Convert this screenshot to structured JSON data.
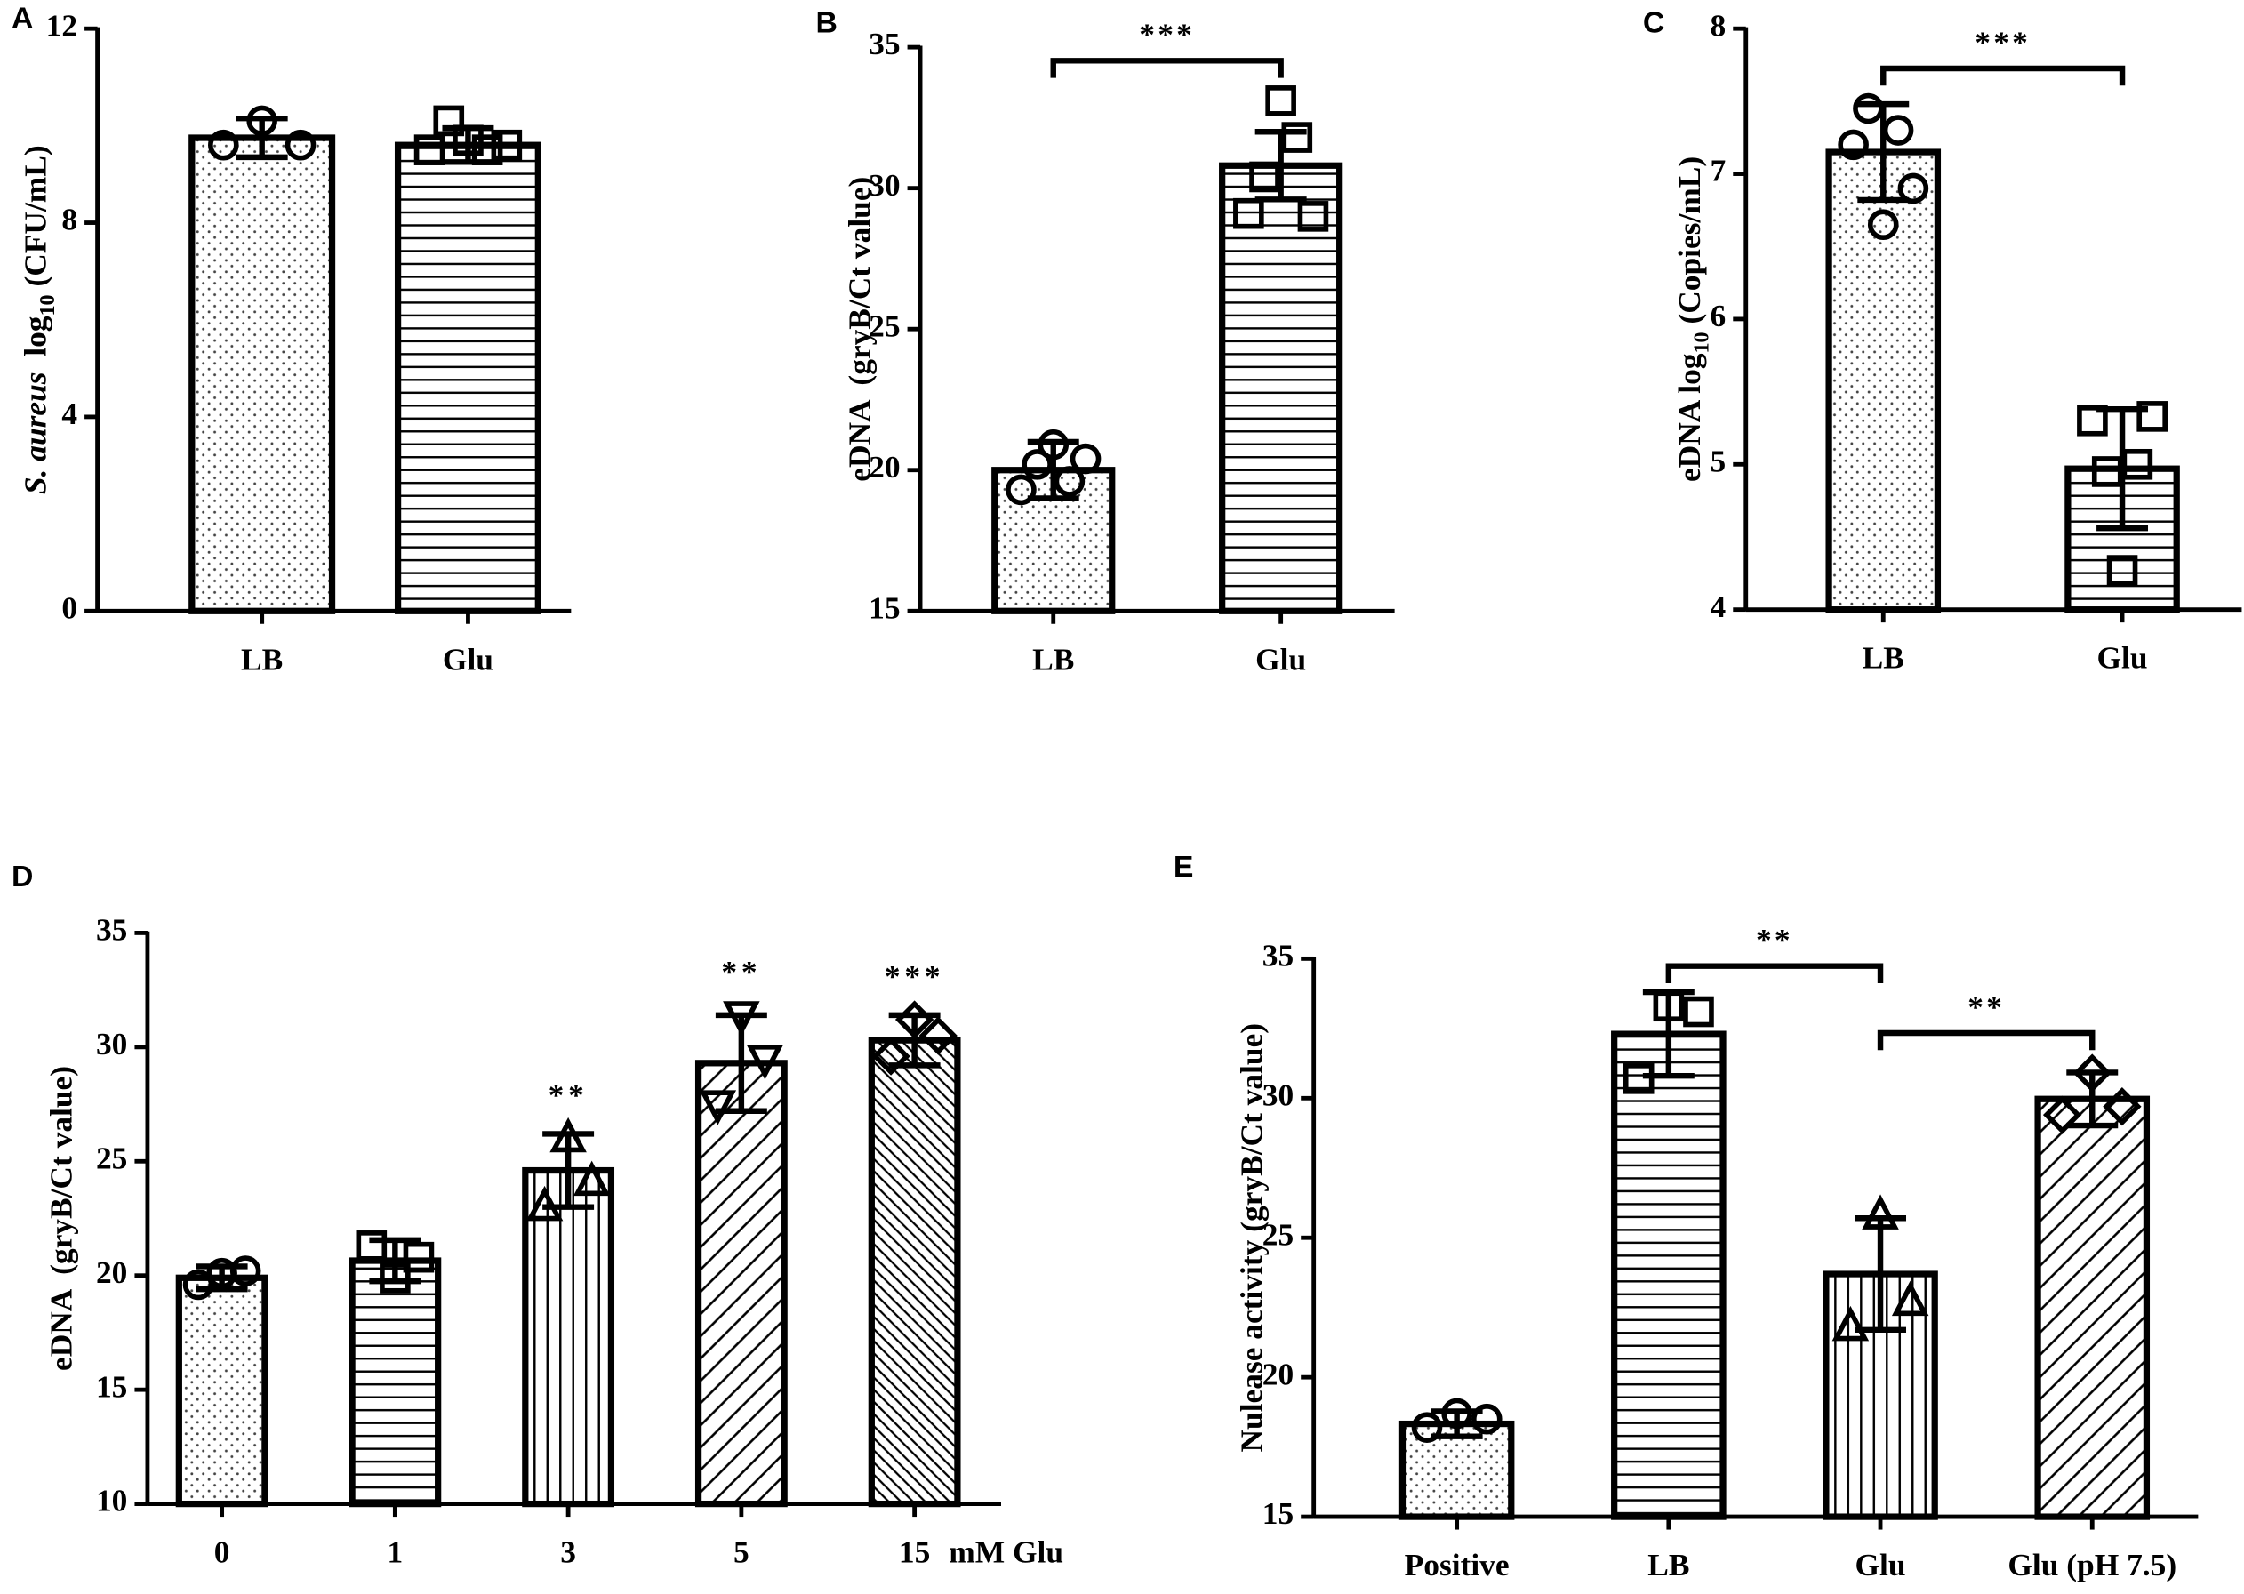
{
  "chart_data": [
    {
      "type": "bar",
      "panel": "A",
      "categories": [
        "LB",
        "Glu"
      ],
      "values": [
        9.75,
        9.6
      ],
      "errors": [
        0.4,
        0.35
      ],
      "points": [
        [
          9.6,
          10.1,
          9.6
        ],
        [
          9.5,
          10.1,
          9.7,
          9.5,
          9.6
        ]
      ],
      "patterns": [
        "dots",
        "hlines"
      ],
      "markers": [
        "circle",
        "square"
      ],
      "ylim": [
        0,
        12
      ],
      "yticks": [
        0,
        4,
        8,
        12
      ],
      "y_label": [
        {
          "text": "S. aureus",
          "italic": true
        },
        {
          "text": "  log"
        },
        {
          "text": "10",
          "sub": true
        },
        {
          "text": " (CFU/mL)"
        }
      ],
      "annotations": []
    },
    {
      "type": "bar",
      "panel": "B",
      "categories": [
        "LB",
        "Glu"
      ],
      "values": [
        20.0,
        30.8
      ],
      "errors": [
        1.0,
        1.2
      ],
      "points": [
        [
          19.3,
          20.2,
          20.9,
          19.6,
          20.4
        ],
        [
          29.1,
          30.4,
          33.1,
          31.8,
          29.0
        ]
      ],
      "patterns": [
        "dots",
        "hlines"
      ],
      "markers": [
        "circle",
        "square"
      ],
      "ylim": [
        15,
        35
      ],
      "yticks": [
        15,
        20,
        25,
        30,
        35
      ],
      "y_label": [
        {
          "text": "eDNA  (gryB/Ct value)"
        }
      ],
      "annotations": [
        {
          "text": "***",
          "from": 0,
          "to": 1
        }
      ]
    },
    {
      "type": "bar",
      "panel": "C",
      "categories": [
        "LB",
        "Glu"
      ],
      "values": [
        7.15,
        4.97
      ],
      "errors": [
        0.33,
        0.41
      ],
      "points": [
        [
          7.2,
          7.45,
          6.65,
          7.3,
          6.9
        ],
        [
          5.3,
          4.95,
          4.27,
          5.0,
          5.33
        ]
      ],
      "patterns": [
        "dots",
        "hlines"
      ],
      "markers": [
        "circle",
        "square"
      ],
      "ylim": [
        4,
        8
      ],
      "yticks": [
        4,
        5,
        6,
        7,
        8
      ],
      "y_label": [
        {
          "text": "eDNA log"
        },
        {
          "text": "10",
          "sub": true
        },
        {
          "text": " (Copies/mL)"
        }
      ],
      "annotations": [
        {
          "text": "***",
          "from": 0,
          "to": 1
        }
      ]
    },
    {
      "type": "bar",
      "panel": "D",
      "categories": [
        "0",
        "1",
        "3",
        "5",
        "15"
      ],
      "x_label": "mM Glu",
      "values": [
        19.9,
        20.65,
        24.6,
        29.3,
        30.3
      ],
      "errors": [
        0.5,
        0.9,
        1.6,
        2.1,
        1.1
      ],
      "points": [
        [
          19.6,
          20.1,
          20.2
        ],
        [
          21.3,
          19.9,
          20.8
        ],
        [
          23.0,
          26.0,
          24.1
        ],
        [
          27.5,
          31.4,
          29.5
        ],
        [
          29.6,
          31.2,
          30.5
        ]
      ],
      "patterns": [
        "dots",
        "hlines",
        "vlines",
        "diag",
        "backdiag"
      ],
      "markers": [
        "circle",
        "square",
        "triangle-up",
        "triangle-down",
        "diamond"
      ],
      "ylim": [
        10,
        35
      ],
      "yticks": [
        10,
        15,
        20,
        25,
        30,
        35
      ],
      "y_label": [
        {
          "text": "eDNA  (gryB/Ct value)"
        }
      ],
      "annotations": [
        {
          "text": "**",
          "at": 2
        },
        {
          "text": "**",
          "at": 3
        },
        {
          "text": "***",
          "at": 4
        }
      ]
    },
    {
      "type": "bar",
      "panel": "E",
      "categories": [
        "Positive",
        "LB",
        "Glu",
        "Glu (pH 7.5)"
      ],
      "values": [
        18.33,
        32.3,
        23.7,
        29.97
      ],
      "errors": [
        0.45,
        1.5,
        2.0,
        0.95
      ],
      "points": [
        [
          18.2,
          18.7,
          18.5
        ],
        [
          30.7,
          33.3,
          33.1
        ],
        [
          21.8,
          25.8,
          22.7
        ],
        [
          29.4,
          30.9,
          29.7
        ]
      ],
      "patterns": [
        "dots",
        "hlines",
        "vlines",
        "diag"
      ],
      "markers": [
        "circle",
        "square",
        "triangle-up",
        "diamond"
      ],
      "ylim": [
        15,
        35
      ],
      "yticks": [
        15,
        20,
        25,
        30,
        35
      ],
      "y_label": [
        {
          "text": "Nulease activity (gryB/Ct value)"
        }
      ],
      "annotations": [
        {
          "text": "**",
          "from": 1,
          "to": 2
        },
        {
          "text": "**",
          "from": 2,
          "to": 3
        }
      ]
    }
  ]
}
